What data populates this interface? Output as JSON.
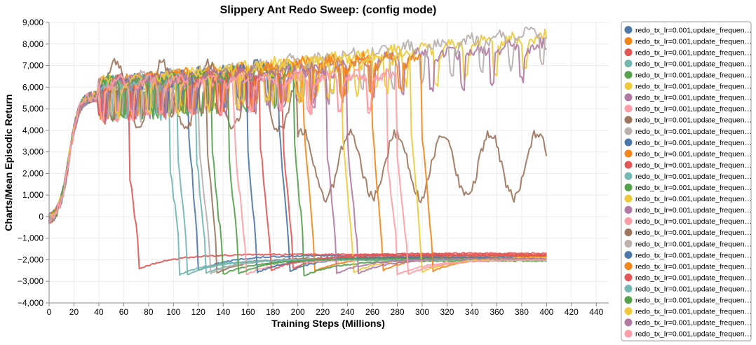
{
  "chart_data": {
    "type": "line",
    "title": "Slippery Ant Redo Sweep: (config mode)",
    "xlabel": "Training Steps (Millions)",
    "ylabel": "Charts/Mean Episodic Return",
    "xlim": [
      0,
      450
    ],
    "ylim": [
      -4000,
      9000
    ],
    "x_ticks": [
      0,
      20,
      40,
      60,
      80,
      100,
      120,
      140,
      160,
      180,
      200,
      220,
      240,
      260,
      280,
      300,
      320,
      340,
      360,
      380,
      400,
      420,
      440
    ],
    "x_tick_labels": [
      "0",
      "20",
      "40",
      "60",
      "80",
      "100",
      "120",
      "140",
      "160",
      "180",
      "200",
      "220",
      "240",
      "260",
      "280",
      "300",
      "320",
      "340",
      "360",
      "380",
      "400",
      "420",
      "440"
    ],
    "y_ticks": [
      -4000,
      -3000,
      -2000,
      -1000,
      0,
      1000,
      2000,
      3000,
      4000,
      5000,
      6000,
      7000,
      8000,
      9000
    ],
    "y_tick_labels": [
      "−4,000",
      "−3,000",
      "−2,000",
      "−1,000",
      "0",
      "1,000",
      "2,000",
      "3,000",
      "4,000",
      "5,000",
      "6,000",
      "7,000",
      "8,000",
      "9,000"
    ],
    "grid": true,
    "legend_position": "right",
    "series": [
      {
        "name": "redo_tx_lr=0.001,update_frequen…",
        "color": "#4c78a8",
        "collapse_at": 112,
        "peak_end": 7700,
        "end_value": -1800
      },
      {
        "name": "redo_tx_lr=0.001,update_frequen…",
        "color": "#f58518",
        "collapse_at": 205,
        "peak_end": 7800,
        "end_value": -1850
      },
      {
        "name": "redo_tx_lr=0.001,update_frequen…",
        "color": "#e45756",
        "collapse_at": 64,
        "peak_end": 6000,
        "end_value": -1750
      },
      {
        "name": "redo_tx_lr=0.001,update_frequen…",
        "color": "#72b7b2",
        "collapse_at": 97,
        "peak_end": 6200,
        "end_value": -2000
      },
      {
        "name": "redo_tx_lr=0.001,update_frequen…",
        "color": "#54a24b",
        "collapse_at": 131,
        "peak_end": 6800,
        "end_value": -2000
      },
      {
        "name": "redo_tx_lr=0.001,update_frequen…",
        "color": "#eeca3b",
        "collapse_at": null,
        "peak_end": 7900,
        "end_value": 7900
      },
      {
        "name": "redo_tx_lr=0.001,update_frequen…",
        "color": "#b279a2",
        "collapse_at": null,
        "peak_end": 7500,
        "end_value": 7450
      },
      {
        "name": "redo_tx_lr=0.001,update_frequen…",
        "color": "#ff9da6",
        "collapse_at": 272,
        "peak_end": 6200,
        "end_value": -2000
      },
      {
        "name": "redo_tx_lr=0.001,update_frequen…",
        "color": "#9d755d",
        "collapse_at": null,
        "peak_end": 5200,
        "end_value": 3500
      },
      {
        "name": "redo_tx_lr=0.001,update_frequen…",
        "color": "#bab0ac",
        "collapse_at": null,
        "peak_end": 8100,
        "end_value": 8050
      },
      {
        "name": "redo_tx_lr=0.001,update_frequen…",
        "color": "#4c78a8",
        "collapse_at": 185,
        "peak_end": 7800,
        "end_value": -1850
      },
      {
        "name": "redo_tx_lr=0.001,update_frequen…",
        "color": "#f58518",
        "collapse_at": 260,
        "peak_end": 7700,
        "end_value": -1800
      },
      {
        "name": "redo_tx_lr=0.001,update_frequen…",
        "color": "#e45756",
        "collapse_at": 188,
        "peak_end": 7000,
        "end_value": -1700
      },
      {
        "name": "redo_tx_lr=0.001,update_frequen…",
        "color": "#72b7b2",
        "collapse_at": 118,
        "peak_end": 6800,
        "end_value": -1950
      },
      {
        "name": "redo_tx_lr=0.001,update_frequen…",
        "color": "#54a24b",
        "collapse_at": 197,
        "peak_end": 7200,
        "end_value": -2050
      },
      {
        "name": "redo_tx_lr=0.001,update_frequen…",
        "color": "#eeca3b",
        "collapse_at": 236,
        "peak_end": 7700,
        "end_value": -1900
      },
      {
        "name": "redo_tx_lr=0.001,update_frequen…",
        "color": "#b279a2",
        "collapse_at": 240,
        "peak_end": 7100,
        "end_value": -1950
      },
      {
        "name": "redo_tx_lr=0.001,update_frequen…",
        "color": "#ff9da6",
        "collapse_at": 150,
        "peak_end": 6600,
        "end_value": -2000
      },
      {
        "name": "redo_tx_lr=0.001,update_frequen…",
        "color": "#9d755d",
        "collapse_at": 127,
        "peak_end": 6700,
        "end_value": -1900
      },
      {
        "name": "redo_tx_lr=0.001,update_frequen…",
        "color": "#bab0ac",
        "collapse_at": 121,
        "peak_end": 6900,
        "end_value": -1950
      },
      {
        "name": "redo_tx_lr=0.001,update_frequen…",
        "color": "#4c78a8",
        "collapse_at": 159,
        "peak_end": 7300,
        "end_value": -1900
      },
      {
        "name": "redo_tx_lr=0.001,update_frequen…",
        "color": "#f58518",
        "collapse_at": 300,
        "peak_end": 7400,
        "end_value": -1850
      },
      {
        "name": "redo_tx_lr=0.001,update_frequen…",
        "color": "#e45756",
        "collapse_at": 170,
        "peak_end": 6900,
        "end_value": -1800
      },
      {
        "name": "redo_tx_lr=0.001,update_frequen…",
        "color": "#72b7b2",
        "collapse_at": 103,
        "peak_end": 6500,
        "end_value": -2000
      },
      {
        "name": "redo_tx_lr=0.001,update_frequen…",
        "color": "#54a24b",
        "collapse_at": 144,
        "peak_end": 6900,
        "end_value": -1950
      },
      {
        "name": "redo_tx_lr=0.001,update_frequen…",
        "color": "#eeca3b",
        "collapse_at": 291,
        "peak_end": 7600,
        "end_value": -1900
      },
      {
        "name": "redo_tx_lr=0.001,update_frequen…",
        "color": "#b279a2",
        "collapse_at": 223,
        "peak_end": 7000,
        "end_value": -1950
      },
      {
        "name": "redo_tx_lr=0.001,update_frequen…",
        "color": "#ff9da6",
        "collapse_at": 280,
        "peak_end": 6300,
        "end_value": -2000
      }
    ]
  }
}
